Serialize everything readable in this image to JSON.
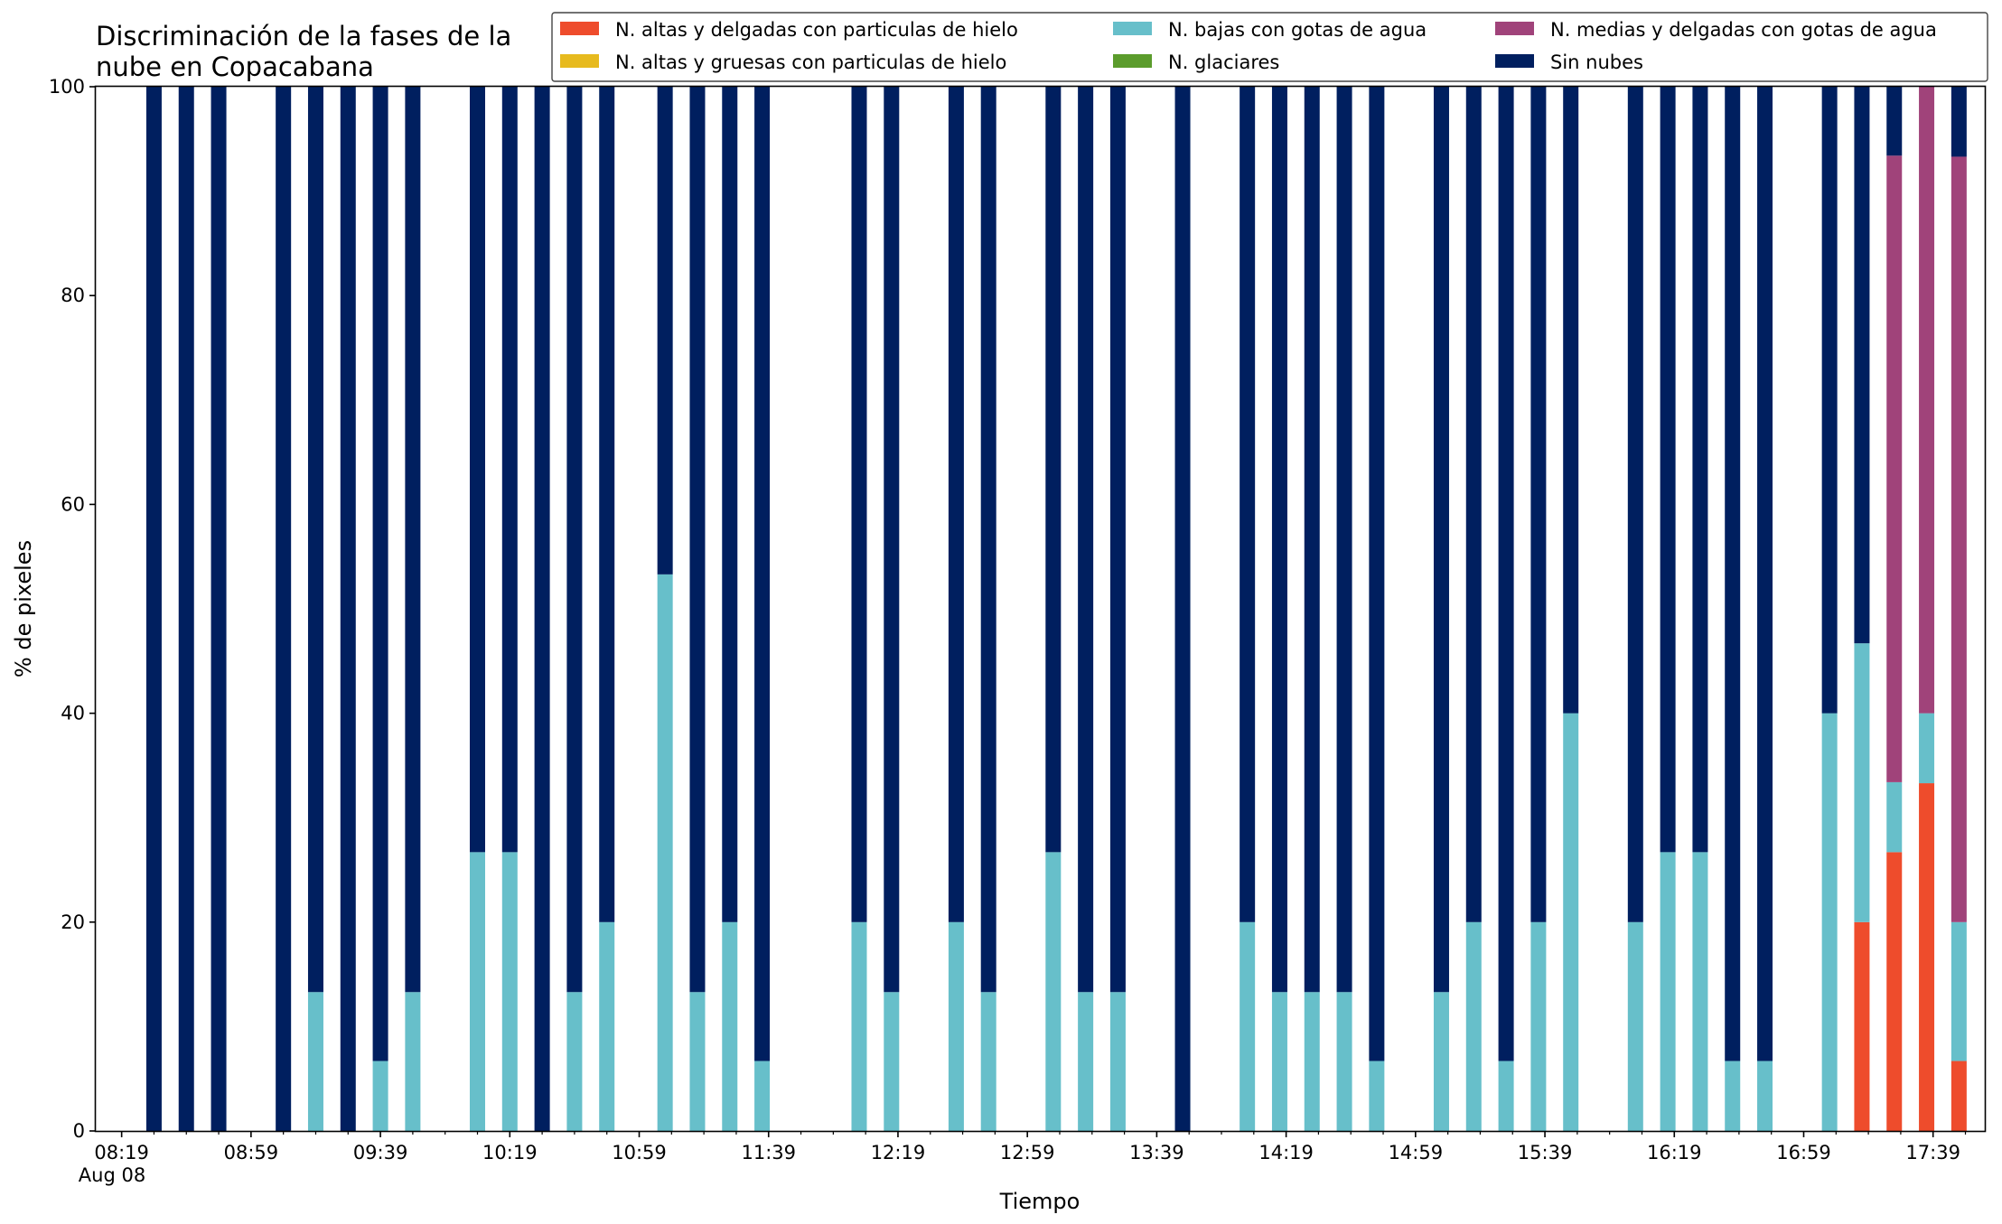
{
  "chart_data": {
    "type": "bar",
    "stacked": true,
    "title_lines": [
      "Discriminación de la fases de la",
      "nube en Copacabana"
    ],
    "xlabel": "Tiempo",
    "ylabel": "% de pixeles",
    "ylim": [
      0,
      100
    ],
    "yticks": [
      0,
      20,
      40,
      60,
      80,
      100
    ],
    "xlim_minutes": [
      "08:11",
      "17:55"
    ],
    "x_tick_labels": [
      "08:19",
      "08:59",
      "09:39",
      "10:19",
      "10:59",
      "11:39",
      "12:19",
      "12:59",
      "13:39",
      "14:19",
      "14:59",
      "15:39",
      "16:19",
      "16:59",
      "17:39"
    ],
    "x_date_label": "Aug 08",
    "grid": false,
    "legend_position": "top-right",
    "series": [
      {
        "name": "N. altas y delgadas con particulas de hielo",
        "color": "#ee4c2c"
      },
      {
        "name": "N. altas y gruesas con particulas de hielo",
        "color": "#e7ba1e"
      },
      {
        "name": "N. bajas con gotas de agua",
        "color": "#67bfca"
      },
      {
        "name": "N. glaciares",
        "color": "#5b9c2c"
      },
      {
        "name": "N. medias y delgadas con gotas de agua",
        "color": "#a0437a"
      },
      {
        "name": "Sin nubes",
        "color": "#001f5f"
      }
    ],
    "bars": [
      {
        "time": "08:29",
        "values": [
          0,
          0,
          0,
          0,
          0,
          100
        ]
      },
      {
        "time": "08:39",
        "values": [
          0,
          0,
          0,
          0,
          0,
          100
        ]
      },
      {
        "time": "08:49",
        "values": [
          0,
          0,
          0,
          0,
          0,
          100
        ]
      },
      {
        "time": "09:09",
        "values": [
          0,
          0,
          0,
          0,
          0,
          100
        ]
      },
      {
        "time": "09:19",
        "values": [
          0,
          0,
          13.3,
          0,
          0,
          86.7
        ]
      },
      {
        "time": "09:29",
        "values": [
          0,
          0,
          0,
          0,
          0,
          100
        ]
      },
      {
        "time": "09:39",
        "values": [
          0,
          0,
          6.7,
          0,
          0,
          93.3
        ]
      },
      {
        "time": "09:49",
        "values": [
          0,
          0,
          13.3,
          0,
          0,
          86.7
        ]
      },
      {
        "time": "10:09",
        "values": [
          0,
          0,
          26.7,
          0,
          0,
          73.3
        ]
      },
      {
        "time": "10:19",
        "values": [
          0,
          0,
          26.7,
          0,
          0,
          73.3
        ]
      },
      {
        "time": "10:29",
        "values": [
          0,
          0,
          0,
          0,
          0,
          100
        ]
      },
      {
        "time": "10:39",
        "values": [
          0,
          0,
          13.3,
          0,
          0,
          86.7
        ]
      },
      {
        "time": "10:49",
        "values": [
          0,
          0,
          20,
          0,
          0,
          80
        ]
      },
      {
        "time": "11:07",
        "values": [
          0,
          0,
          53.3,
          0,
          0,
          46.7
        ]
      },
      {
        "time": "11:17",
        "values": [
          0,
          0,
          13.3,
          0,
          0,
          86.7
        ]
      },
      {
        "time": "11:27",
        "values": [
          0,
          0,
          20,
          0,
          0,
          80
        ]
      },
      {
        "time": "11:37",
        "values": [
          0,
          0,
          6.7,
          0,
          0,
          93.3
        ]
      },
      {
        "time": "12:07",
        "values": [
          0,
          0,
          20,
          0,
          0,
          80
        ]
      },
      {
        "time": "12:17",
        "values": [
          0,
          0,
          13.3,
          0,
          0,
          86.7
        ]
      },
      {
        "time": "12:37",
        "values": [
          0,
          0,
          20,
          0,
          0,
          80
        ]
      },
      {
        "time": "12:47",
        "values": [
          0,
          0,
          13.3,
          0,
          0,
          86.7
        ]
      },
      {
        "time": "13:07",
        "values": [
          0,
          0,
          26.7,
          0,
          0,
          73.3
        ]
      },
      {
        "time": "13:17",
        "values": [
          0,
          0,
          13.3,
          0,
          0,
          86.7
        ]
      },
      {
        "time": "13:27",
        "values": [
          0,
          0,
          13.3,
          0,
          0,
          86.7
        ]
      },
      {
        "time": "13:47",
        "values": [
          0,
          0,
          0,
          0,
          0,
          100
        ]
      },
      {
        "time": "14:07",
        "values": [
          0,
          0,
          20,
          0,
          0,
          80
        ]
      },
      {
        "time": "14:17",
        "values": [
          0,
          0,
          13.3,
          0,
          0,
          86.7
        ]
      },
      {
        "time": "14:27",
        "values": [
          0,
          0,
          13.3,
          0,
          0,
          86.7
        ]
      },
      {
        "time": "14:37",
        "values": [
          0,
          0,
          13.3,
          0,
          0,
          86.7
        ]
      },
      {
        "time": "14:47",
        "values": [
          0,
          0,
          6.7,
          0,
          0,
          93.3
        ]
      },
      {
        "time": "15:07",
        "values": [
          0,
          0,
          13.3,
          0,
          0,
          86.7
        ]
      },
      {
        "time": "15:17",
        "values": [
          0,
          0,
          20,
          0,
          0,
          80
        ]
      },
      {
        "time": "15:27",
        "values": [
          0,
          0,
          6.7,
          0,
          0,
          93.3
        ]
      },
      {
        "time": "15:37",
        "values": [
          0,
          0,
          20,
          0,
          0,
          80
        ]
      },
      {
        "time": "15:47",
        "values": [
          0,
          0,
          40,
          0,
          0,
          60
        ]
      },
      {
        "time": "16:07",
        "values": [
          0,
          0,
          20,
          0,
          0,
          80
        ]
      },
      {
        "time": "16:17",
        "values": [
          0,
          0,
          26.7,
          0,
          0,
          73.3
        ]
      },
      {
        "time": "16:27",
        "values": [
          0,
          0,
          26.7,
          0,
          0,
          73.3
        ]
      },
      {
        "time": "16:37",
        "values": [
          0,
          0,
          6.7,
          0,
          0,
          93.3
        ]
      },
      {
        "time": "16:47",
        "values": [
          0,
          0,
          6.7,
          0,
          0,
          93.3
        ]
      },
      {
        "time": "17:07",
        "values": [
          0,
          0,
          40,
          0,
          0,
          60
        ]
      },
      {
        "time": "17:17",
        "values": [
          20,
          0,
          26.7,
          0,
          0,
          53.3
        ]
      },
      {
        "time": "17:27",
        "values": [
          26.7,
          0,
          6.7,
          0,
          60,
          6.6
        ]
      },
      {
        "time": "17:37",
        "values": [
          33.3,
          0,
          6.7,
          0,
          60,
          0
        ]
      },
      {
        "time": "17:47",
        "values": [
          6.7,
          0,
          13.3,
          0,
          73.3,
          6.7
        ]
      }
    ]
  }
}
